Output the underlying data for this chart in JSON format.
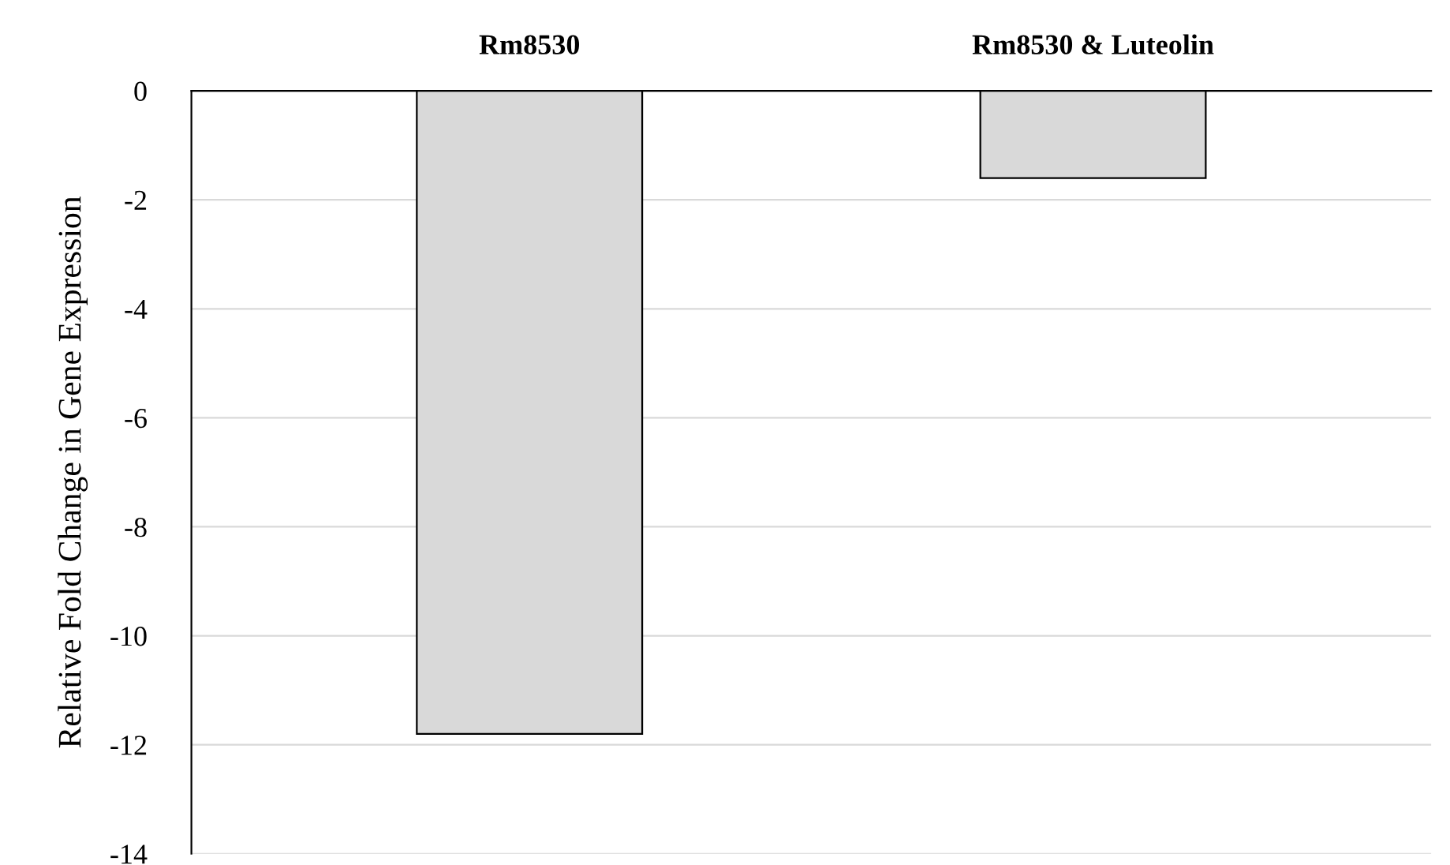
{
  "chart_data": {
    "type": "bar",
    "ylabel": "Relative Fold Change in Gene Expression",
    "categories": [
      "Rm8530",
      "Rm8530 & Luteolin"
    ],
    "series": [
      {
        "color": "#d9d9d9",
        "values": [
          -11.8,
          -1.6
        ]
      }
    ],
    "ylim": [
      -14,
      0
    ],
    "yticks": [
      0,
      -2,
      -4,
      -6,
      -8,
      -10,
      -12,
      -14
    ],
    "grid": "y"
  }
}
